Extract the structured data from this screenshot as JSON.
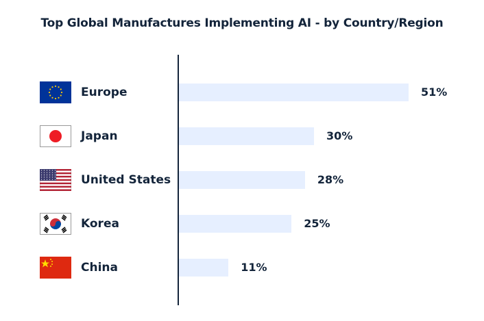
{
  "chart_data": {
    "type": "bar",
    "orientation": "horizontal",
    "title": "Top Global Manufactures Implementing AI - by Country/Region",
    "categories": [
      "Europe",
      "Japan",
      "United States",
      "Korea",
      "China"
    ],
    "values": [
      51,
      30,
      28,
      25,
      11
    ],
    "value_labels": [
      "51%",
      "30%",
      "28%",
      "25%",
      "11%"
    ],
    "flag_icons": [
      "eu-flag-icon",
      "japan-flag-icon",
      "us-flag-icon",
      "korea-flag-icon",
      "china-flag-icon"
    ],
    "bar_color": "#e6efff",
    "grid": false
  }
}
